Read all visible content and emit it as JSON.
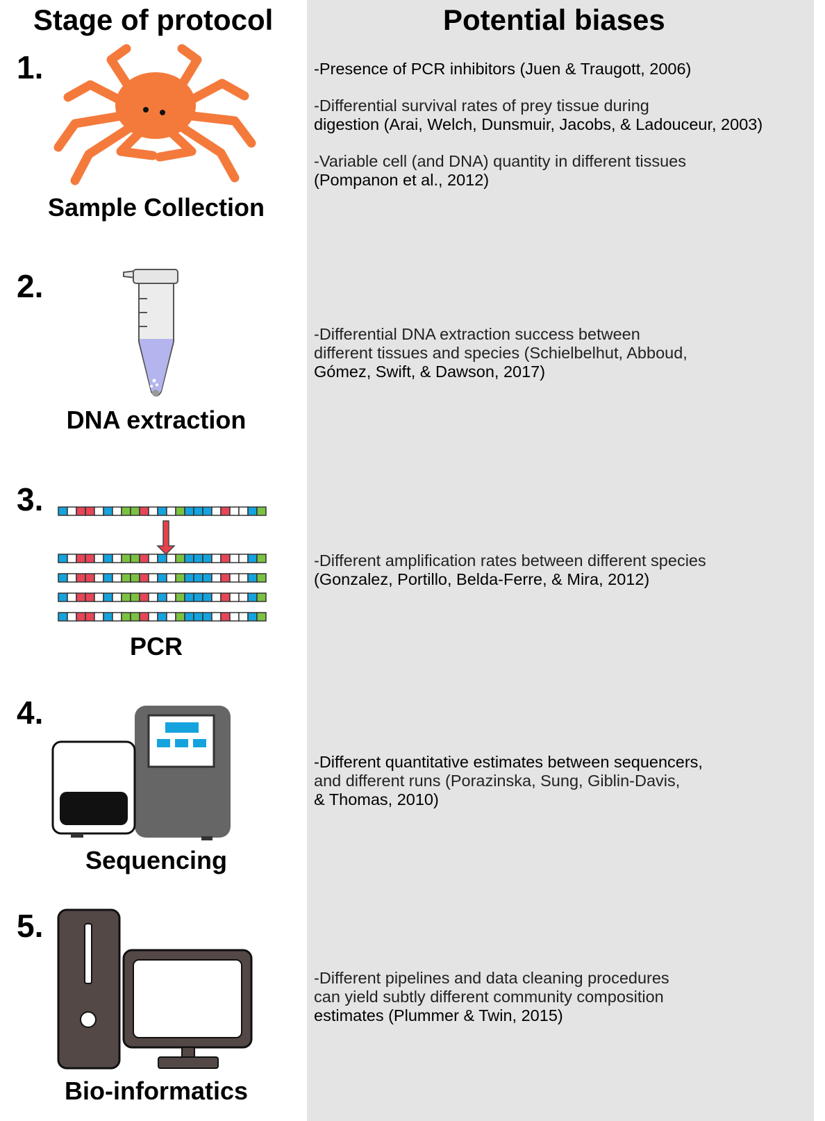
{
  "headers": {
    "left": "Stage of protocol",
    "right": "Potential biases"
  },
  "colors": {
    "panel": "#e4e4e4",
    "crab": "#f47a3c",
    "tube_liquid": "#b4b4ee",
    "dna_blue": "#15a3dd",
    "dna_green": "#7cc242",
    "dna_red": "#e64658",
    "arrow": "#e8404a",
    "sequencer": "#666666",
    "computer": "#544847"
  },
  "stages": [
    {
      "number": "1.",
      "label": "Sample Collection",
      "icon": "crab-icon",
      "biases": [
        {
          "lines": [
            "-Presence of PCR inhibitors (Juen & Traugott, 2006)"
          ]
        },
        {
          "lines": [
            "-Differential survival rates of prey tissue during",
            "digestion (Arai, Welch, Dunsmuir, Jacobs, & Ladouceur, 2003)"
          ]
        },
        {
          "lines": [
            "-Variable cell (and DNA) quantity in different tissues",
            "(Pompanon et al., 2012)"
          ]
        }
      ]
    },
    {
      "number": "2.",
      "label": "DNA extraction",
      "icon": "microcentrifuge-tube-icon",
      "biases": [
        {
          "lines": [
            "-Differential DNA extraction success between",
            "different tissues and species (Schielbelhut, Abboud,",
            "Gómez, Swift, & Dawson, 2017)"
          ]
        }
      ]
    },
    {
      "number": "3.",
      "label": "PCR",
      "icon": "dna-amplification-icon",
      "biases": [
        {
          "lines": [
            "-Different amplification rates between different species",
            "(Gonzalez, Portillo, Belda-Ferre, & Mira, 2012)"
          ]
        }
      ]
    },
    {
      "number": "4.",
      "label": "Sequencing",
      "icon": "sequencer-icon",
      "biases": [
        {
          "lines": [
            "-Different quantitative estimates between sequencers,",
            "and different runs (Porazinska, Sung, Giblin-Davis,",
            "& Thomas, 2010)"
          ]
        }
      ]
    },
    {
      "number": "5.",
      "label": "Bio-informatics",
      "icon": "computer-icon",
      "biases": [
        {
          "lines": [
            "-Different pipelines and data cleaning procedures",
            " can yield subtly different community composition",
            "estimates (Plummer & Twin, 2015)"
          ]
        }
      ]
    }
  ],
  "dna_pattern": [
    "b",
    "w",
    "r",
    "r",
    "w",
    "b",
    "w",
    "g",
    "g",
    "r",
    "w",
    "b",
    "w",
    "g",
    "b",
    "b",
    "b",
    "w",
    "r",
    "w",
    "w",
    "b",
    "g"
  ]
}
